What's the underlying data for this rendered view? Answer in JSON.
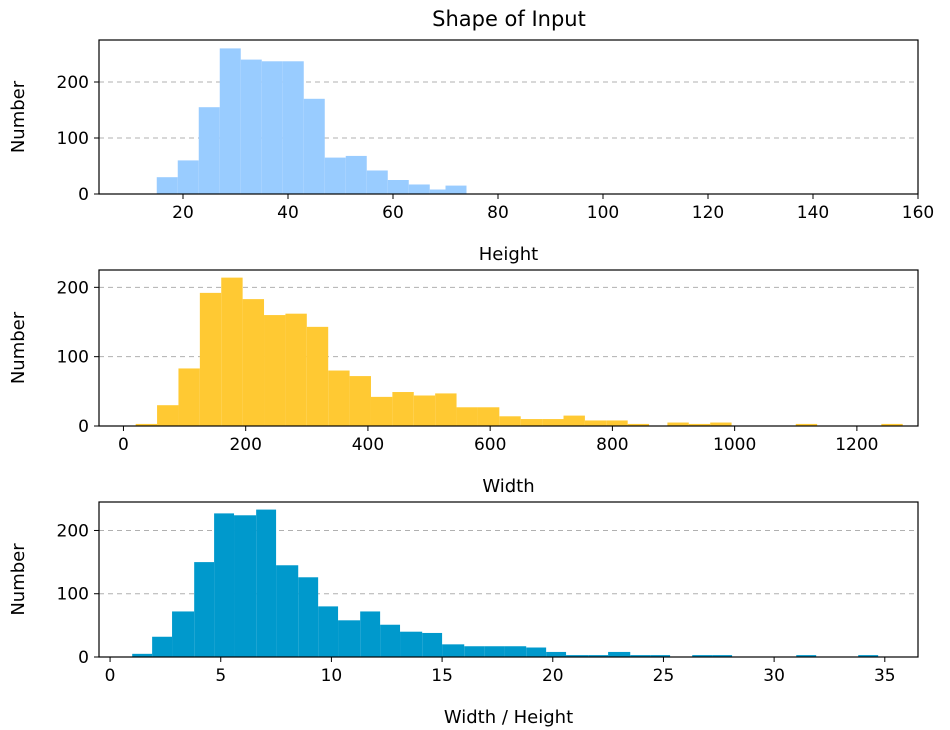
{
  "chart_data": {
    "title": "Shape of Input",
    "panels": [
      {
        "type": "bar",
        "xlabel": "Height",
        "ylabel": "Number",
        "color": "#99ccff",
        "xlim": [
          4,
          160
        ],
        "ylim": [
          0,
          275
        ],
        "xticks": [
          20,
          40,
          60,
          80,
          100,
          120,
          140,
          160
        ],
        "yticks": [
          0,
          100,
          200
        ],
        "grid": "y-dashed",
        "bins": [
          {
            "x0": 15,
            "x1": 19,
            "value": 30
          },
          {
            "x0": 19,
            "x1": 23,
            "value": 60
          },
          {
            "x0": 23,
            "x1": 27,
            "value": 155
          },
          {
            "x0": 27,
            "x1": 31,
            "value": 260
          },
          {
            "x0": 31,
            "x1": 35,
            "value": 240
          },
          {
            "x0": 35,
            "x1": 39,
            "value": 237
          },
          {
            "x0": 39,
            "x1": 43,
            "value": 237
          },
          {
            "x0": 43,
            "x1": 47,
            "value": 170
          },
          {
            "x0": 47,
            "x1": 51,
            "value": 65
          },
          {
            "x0": 51,
            "x1": 55,
            "value": 68
          },
          {
            "x0": 55,
            "x1": 59,
            "value": 42
          },
          {
            "x0": 59,
            "x1": 63,
            "value": 25
          },
          {
            "x0": 63,
            "x1": 67,
            "value": 17
          },
          {
            "x0": 67,
            "x1": 70,
            "value": 8
          },
          {
            "x0": 70,
            "x1": 74,
            "value": 15
          }
        ]
      },
      {
        "type": "bar",
        "xlabel": "Width",
        "ylabel": "Number",
        "color": "#ffc933",
        "xlim": [
          -40,
          1300
        ],
        "ylim": [
          0,
          225
        ],
        "xticks": [
          0,
          200,
          400,
          600,
          800,
          1000,
          1200
        ],
        "yticks": [
          0,
          100,
          200
        ],
        "grid": "y-dashed",
        "bins": [
          {
            "x0": 20,
            "x1": 55,
            "value": 3
          },
          {
            "x0": 55,
            "x1": 90,
            "value": 30
          },
          {
            "x0": 90,
            "x1": 125,
            "value": 83
          },
          {
            "x0": 125,
            "x1": 160,
            "value": 192
          },
          {
            "x0": 160,
            "x1": 195,
            "value": 214
          },
          {
            "x0": 195,
            "x1": 230,
            "value": 183
          },
          {
            "x0": 230,
            "x1": 265,
            "value": 160
          },
          {
            "x0": 265,
            "x1": 300,
            "value": 162
          },
          {
            "x0": 300,
            "x1": 335,
            "value": 143
          },
          {
            "x0": 335,
            "x1": 370,
            "value": 80
          },
          {
            "x0": 370,
            "x1": 405,
            "value": 72
          },
          {
            "x0": 405,
            "x1": 440,
            "value": 42
          },
          {
            "x0": 440,
            "x1": 475,
            "value": 49
          },
          {
            "x0": 475,
            "x1": 510,
            "value": 44
          },
          {
            "x0": 510,
            "x1": 545,
            "value": 47
          },
          {
            "x0": 545,
            "x1": 580,
            "value": 27
          },
          {
            "x0": 580,
            "x1": 615,
            "value": 27
          },
          {
            "x0": 615,
            "x1": 650,
            "value": 14
          },
          {
            "x0": 650,
            "x1": 685,
            "value": 10
          },
          {
            "x0": 685,
            "x1": 720,
            "value": 10
          },
          {
            "x0": 720,
            "x1": 755,
            "value": 15
          },
          {
            "x0": 755,
            "x1": 790,
            "value": 8
          },
          {
            "x0": 790,
            "x1": 825,
            "value": 8
          },
          {
            "x0": 825,
            "x1": 860,
            "value": 3
          },
          {
            "x0": 890,
            "x1": 925,
            "value": 5
          },
          {
            "x0": 925,
            "x1": 960,
            "value": 3
          },
          {
            "x0": 960,
            "x1": 995,
            "value": 5
          },
          {
            "x0": 1100,
            "x1": 1135,
            "value": 3
          },
          {
            "x0": 1240,
            "x1": 1275,
            "value": 3
          }
        ]
      },
      {
        "type": "bar",
        "xlabel": "Width / Height",
        "ylabel": "Number",
        "color": "#0099cc",
        "xlim": [
          -0.5,
          36.5
        ],
        "ylim": [
          0,
          245
        ],
        "xticks": [
          0,
          5,
          10,
          15,
          20,
          25,
          30,
          35
        ],
        "yticks": [
          0,
          100,
          200
        ],
        "grid": "y-dashed",
        "bins": [
          {
            "x0": 1.0,
            "x1": 1.9,
            "value": 5
          },
          {
            "x0": 1.9,
            "x1": 2.8,
            "value": 32
          },
          {
            "x0": 2.8,
            "x1": 3.8,
            "value": 72
          },
          {
            "x0": 3.8,
            "x1": 4.7,
            "value": 150
          },
          {
            "x0": 4.7,
            "x1": 5.6,
            "value": 227
          },
          {
            "x0": 5.6,
            "x1": 6.6,
            "value": 224
          },
          {
            "x0": 6.6,
            "x1": 7.5,
            "value": 233
          },
          {
            "x0": 7.5,
            "x1": 8.5,
            "value": 145
          },
          {
            "x0": 8.5,
            "x1": 9.4,
            "value": 126
          },
          {
            "x0": 9.4,
            "x1": 10.3,
            "value": 80
          },
          {
            "x0": 10.3,
            "x1": 11.3,
            "value": 58
          },
          {
            "x0": 11.3,
            "x1": 12.2,
            "value": 72
          },
          {
            "x0": 12.2,
            "x1": 13.1,
            "value": 51
          },
          {
            "x0": 13.1,
            "x1": 14.1,
            "value": 40
          },
          {
            "x0": 14.1,
            "x1": 15.0,
            "value": 38
          },
          {
            "x0": 15.0,
            "x1": 16.0,
            "value": 20
          },
          {
            "x0": 16.0,
            "x1": 16.9,
            "value": 17
          },
          {
            "x0": 16.9,
            "x1": 17.8,
            "value": 17
          },
          {
            "x0": 17.8,
            "x1": 18.8,
            "value": 17
          },
          {
            "x0": 18.8,
            "x1": 19.7,
            "value": 15
          },
          {
            "x0": 19.7,
            "x1": 20.6,
            "value": 8
          },
          {
            "x0": 20.6,
            "x1": 21.6,
            "value": 3
          },
          {
            "x0": 21.6,
            "x1": 22.5,
            "value": 3
          },
          {
            "x0": 22.5,
            "x1": 23.5,
            "value": 8
          },
          {
            "x0": 23.5,
            "x1": 24.4,
            "value": 3
          },
          {
            "x0": 24.4,
            "x1": 25.3,
            "value": 3
          },
          {
            "x0": 26.3,
            "x1": 27.2,
            "value": 3
          },
          {
            "x0": 27.2,
            "x1": 28.1,
            "value": 3
          },
          {
            "x0": 31.0,
            "x1": 31.9,
            "value": 3
          },
          {
            "x0": 33.8,
            "x1": 34.7,
            "value": 3
          }
        ]
      }
    ]
  }
}
